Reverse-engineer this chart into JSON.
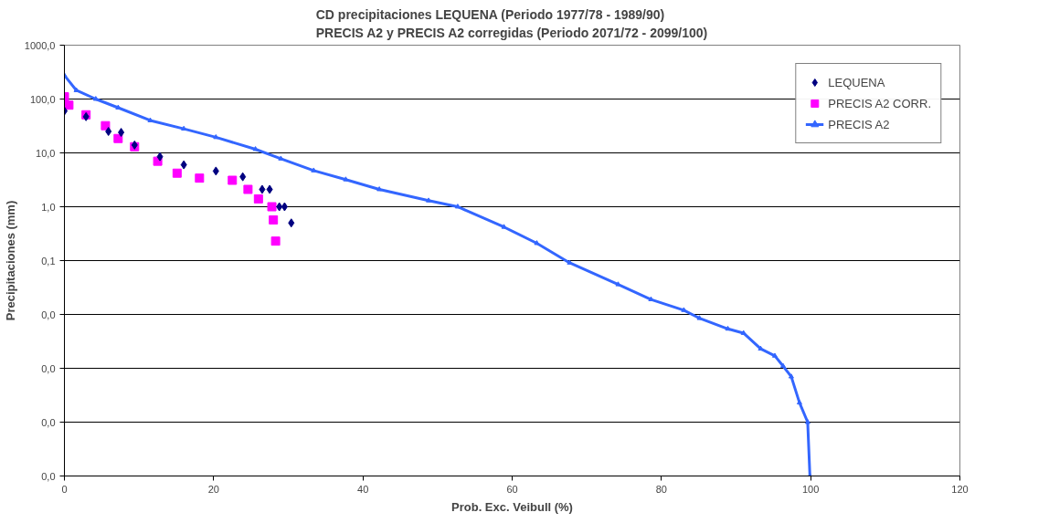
{
  "chart_data": {
    "type": "scatter",
    "title": "CD precipitaciones LEQUENA (Periodo 1977/78 - 1989/90)\nPRECIS A2 y PRECIS A2 corregidas (Periodo 2071/72 - 2099/100)",
    "xlabel": "Prob. Exc. Veibull (%)",
    "ylabel": "Precipitaciones (mm)",
    "log": "y",
    "grid": "y",
    "legend": "top right",
    "xlim": [
      0,
      120
    ],
    "xticks": [
      0,
      20,
      40,
      60,
      80,
      100,
      120
    ],
    "ylim": [
      1e-05,
      1000
    ],
    "yticks": [
      {
        "value": 1e-05,
        "label": "0,0"
      },
      {
        "value": 0.0001,
        "label": "0,0"
      },
      {
        "value": 0.001,
        "label": "0,0"
      },
      {
        "value": 0.01,
        "label": "0,0"
      },
      {
        "value": 0.1,
        "label": "0,1"
      },
      {
        "value": 1,
        "label": "1,0"
      },
      {
        "value": 10,
        "label": "10,0"
      },
      {
        "value": 100,
        "label": "100,0"
      },
      {
        "value": 1000,
        "label": "1000,0"
      }
    ],
    "series": [
      {
        "name": "LEQUENA",
        "marker": "diamond",
        "color": "#000080",
        "x": [
          0,
          2.9,
          5.9,
          7.6,
          9.4,
          12.8,
          16,
          20.3,
          23.9,
          26.5,
          27.5,
          28.8,
          29.5,
          30.4
        ],
        "values": [
          60,
          47,
          25,
          24,
          14,
          8.5,
          6,
          4.6,
          3.6,
          2.1,
          2.1,
          1.0,
          1.0,
          0.5
        ]
      },
      {
        "name": "PRECIS A2 CORR.",
        "marker": "square",
        "color": "#ff00ff",
        "x": [
          0,
          0.6,
          2.9,
          5.5,
          7.2,
          9.4,
          12.5,
          15.1,
          18.1,
          22.5,
          24.6,
          26,
          27.8,
          28,
          28.3
        ],
        "values": [
          110,
          77,
          51,
          32,
          18.5,
          13,
          7,
          4.2,
          3.4,
          3.1,
          2.1,
          1.4,
          1.0,
          0.57,
          0.23
        ]
      },
      {
        "name": "PRECIS A2",
        "type": "line",
        "marker": "triangle",
        "color": "#3366ff",
        "x": [
          0,
          1.6,
          4.2,
          7.2,
          11.5,
          16,
          20.3,
          25.6,
          29,
          33.4,
          37.7,
          42.2,
          48.8,
          52.7,
          58.9,
          63.3,
          67.7,
          74.2,
          78.6,
          83,
          85.1,
          88.9,
          91,
          93.3,
          95.2,
          96.3,
          97.4,
          98.5,
          99.6,
          99.9
        ],
        "values": [
          275,
          145,
          100,
          69,
          40,
          28,
          19.5,
          11.7,
          7.8,
          4.7,
          3.2,
          2.1,
          1.3,
          1.0,
          0.42,
          0.21,
          0.091,
          0.036,
          0.019,
          0.012,
          0.0085,
          0.0054,
          0.0045,
          0.0023,
          0.0017,
          0.0011,
          0.0007,
          0.00023,
          0.0001,
          1e-05
        ]
      }
    ]
  }
}
